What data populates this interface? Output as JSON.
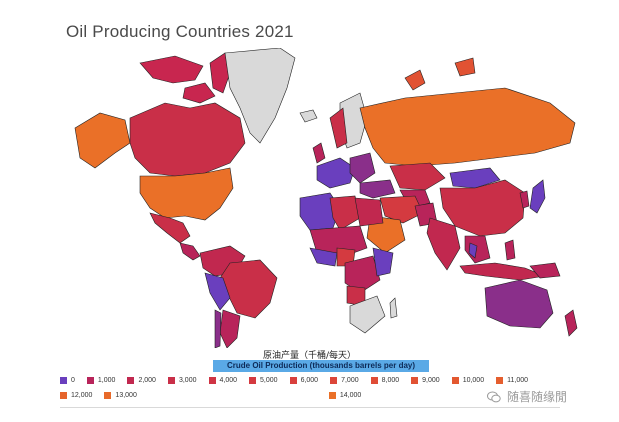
{
  "title": "Oil Producing Countries 2021",
  "legend": {
    "title_cn": "原油产量（千桶/每天）",
    "title_en": "Crude Oil Production (thousands barrels per day)",
    "items": [
      {
        "label": "0",
        "color": "#6a3fbe"
      },
      {
        "label": "1,000",
        "color": "#b8245a"
      },
      {
        "label": "2,000",
        "color": "#c1284f"
      },
      {
        "label": "3,000",
        "color": "#c92f48"
      },
      {
        "label": "4,000",
        "color": "#cf3444"
      },
      {
        "label": "5,000",
        "color": "#d43a40"
      },
      {
        "label": "6,000",
        "color": "#d9403d"
      },
      {
        "label": "7,000",
        "color": "#dc4639"
      },
      {
        "label": "8,000",
        "color": "#df4c36"
      },
      {
        "label": "9,000",
        "color": "#e15233"
      },
      {
        "label": "10,000",
        "color": "#e35830"
      },
      {
        "label": "11,000",
        "color": "#e55e2e"
      },
      {
        "label": "12,000",
        "color": "#e6642c"
      },
      {
        "label": "13,000",
        "color": "#e86a2a"
      },
      {
        "label": "14,000",
        "color": "#ea7028"
      }
    ]
  },
  "watermark": "随喜随缘閒",
  "colors": {
    "no_data": "#d9d9d9",
    "ocean": "#ffffff",
    "border": "#222222"
  }
}
